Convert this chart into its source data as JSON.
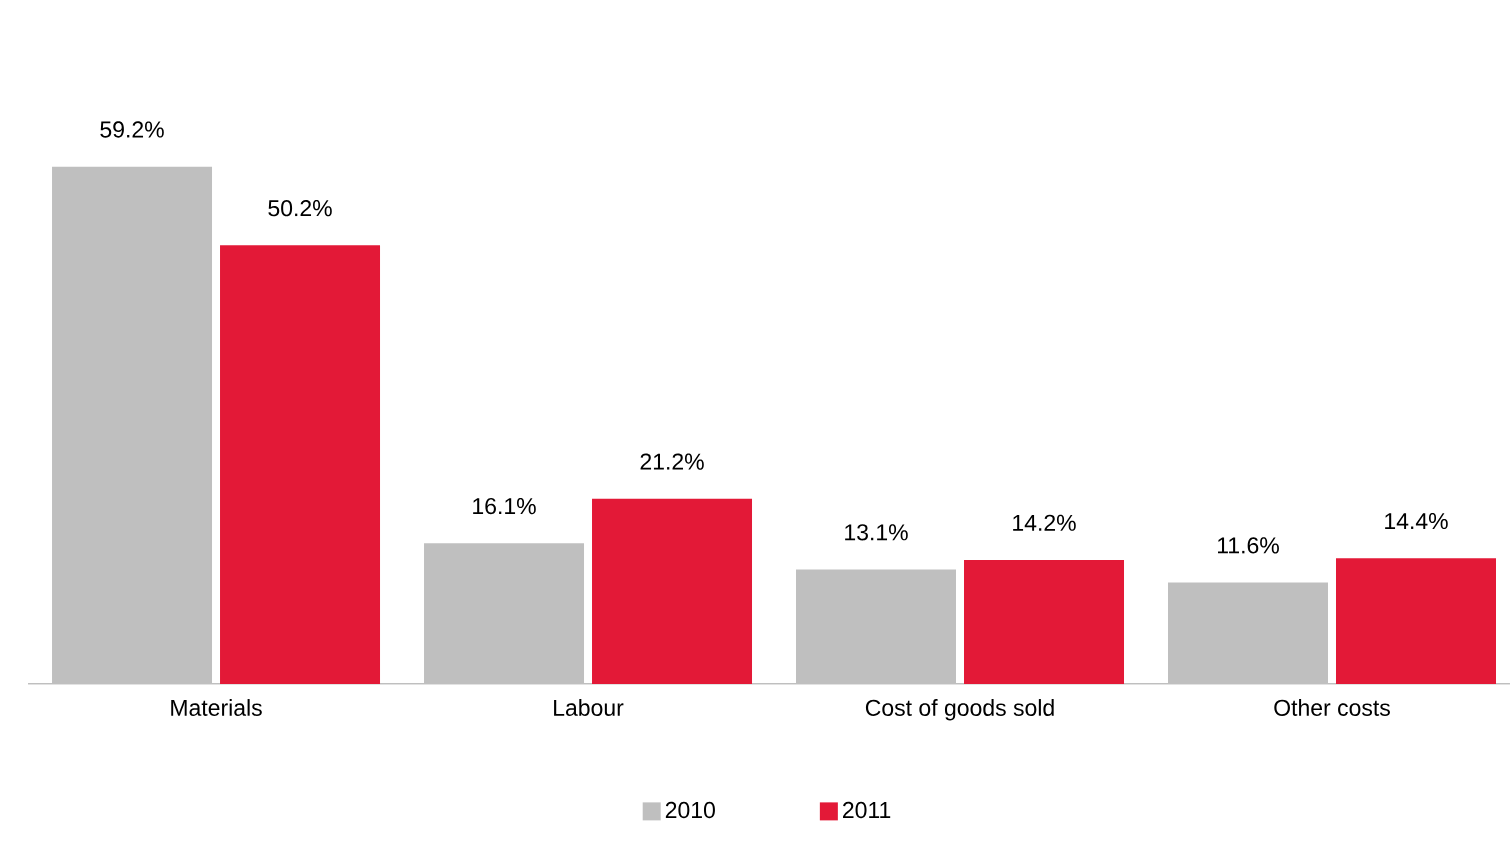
{
  "chart_data": {
    "type": "bar",
    "categories": [
      "Materials",
      "Labour",
      "Cost of goods sold",
      "Other costs"
    ],
    "series": [
      {
        "name": "2010",
        "color": "#bfbfbf",
        "values": [
          59.2,
          16.1,
          13.1,
          11.6
        ],
        "value_labels": [
          "59.2%",
          "16.1%",
          "13.1%",
          "11.6%"
        ]
      },
      {
        "name": "2011",
        "color": "#e31937",
        "values": [
          50.2,
          21.2,
          14.2,
          14.4
        ],
        "value_labels": [
          "50.2%",
          "21.2%",
          "14.2%",
          "14.4%"
        ]
      }
    ],
    "legend": "bottom"
  }
}
